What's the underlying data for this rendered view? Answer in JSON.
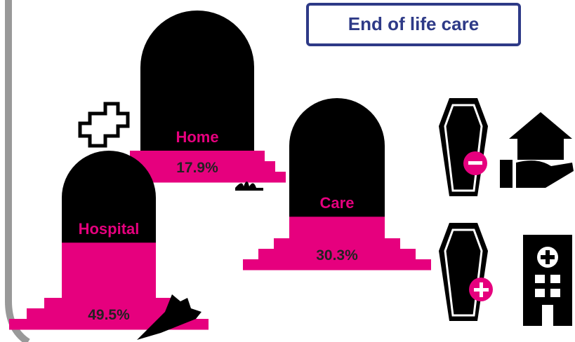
{
  "chart_data": {
    "type": "pictogram",
    "title": "End of life care",
    "categories": [
      "Home",
      "Care",
      "Hospital"
    ],
    "values": [
      17.9,
      30.3,
      49.5
    ],
    "value_labels": [
      "17.9%",
      "30.3%",
      "49.5%"
    ],
    "color": "#e6007e"
  }
}
